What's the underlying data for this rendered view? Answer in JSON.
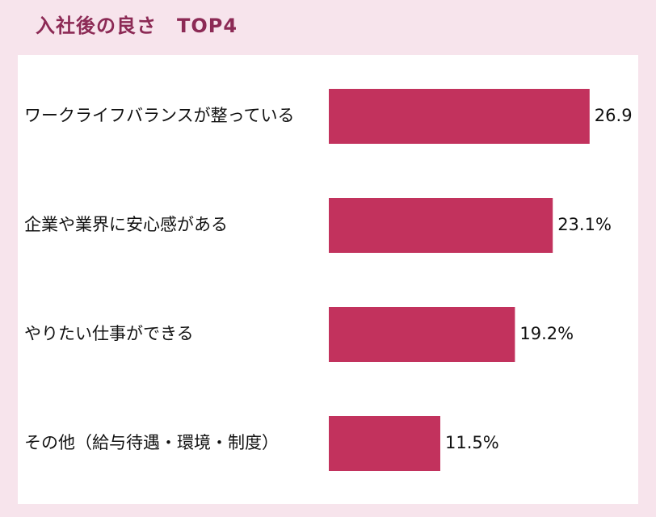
{
  "title": "入社後の良さ　TOP4",
  "colors": {
    "bar": "#c2325d",
    "background": "#f7e4ec",
    "title": "#8c2a55",
    "panel": "#ffffff"
  },
  "chart_data": {
    "type": "bar",
    "orientation": "horizontal",
    "title": "入社後の良さ　TOP4",
    "categories": [
      "ワークライフバランスが整っている",
      "企業や業界に安心感がある",
      "やりたい仕事ができる",
      "その他（給与待遇・環境・制度）"
    ],
    "values": [
      26.9,
      23.1,
      19.2,
      11.5
    ],
    "value_labels": [
      "26.9",
      "23.1%",
      "19.2%",
      "11.5%"
    ],
    "xlim": [
      0,
      30
    ],
    "grid": false,
    "legend": "none"
  }
}
